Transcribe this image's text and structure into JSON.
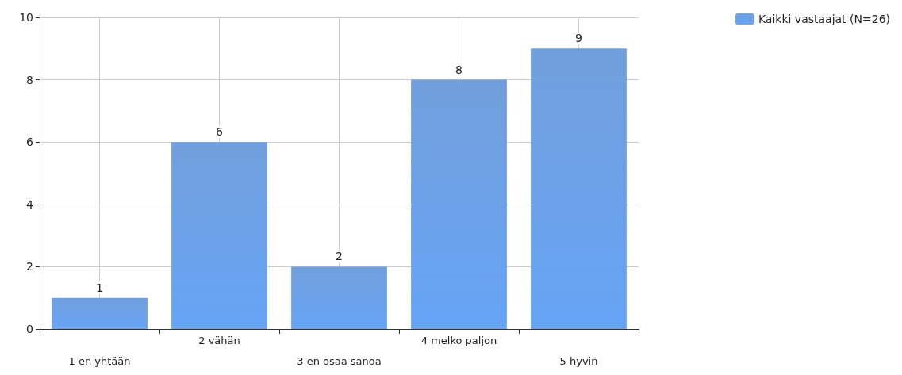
{
  "chart_data": {
    "type": "bar",
    "categories": [
      "1 en yhtään",
      "2 vähän",
      "3 en osaa sanoa",
      "4 melko paljon",
      "5 hyvin"
    ],
    "series": [
      {
        "name": "Kaikki vastaajat (N=26)",
        "color": "#5a8fd6",
        "values": [
          1,
          6,
          2,
          8,
          9
        ]
      }
    ],
    "ylim": [
      0,
      10
    ],
    "yticks": [
      0,
      2,
      4,
      6,
      8,
      10
    ],
    "grid": true,
    "legend": "top right",
    "data_labels": true
  }
}
